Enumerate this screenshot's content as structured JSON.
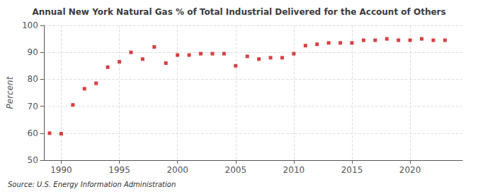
{
  "chart_data": {
    "type": "scatter",
    "title": "Annual New York Natural Gas % of Total Industrial Delivered for the Account of Others",
    "ylabel": "Percent",
    "annotations": [
      "Source: U.S. Energy Information Administration"
    ],
    "x": [
      1989,
      1990,
      1991,
      1992,
      1993,
      1994,
      1995,
      1996,
      1997,
      1998,
      1999,
      2000,
      2001,
      2002,
      2003,
      2004,
      2005,
      2006,
      2007,
      2008,
      2009,
      2010,
      2011,
      2012,
      2013,
      2014,
      2015,
      2016,
      2017,
      2018,
      2019,
      2020,
      2021,
      2022,
      2023
    ],
    "values": [
      60.0,
      59.8,
      70.5,
      76.5,
      78.5,
      84.5,
      86.5,
      90.0,
      87.5,
      92.0,
      86.0,
      89.0,
      89.0,
      89.5,
      89.5,
      89.5,
      85.0,
      88.5,
      87.5,
      88.0,
      88.0,
      89.5,
      92.5,
      93.0,
      93.5,
      93.5,
      93.5,
      94.5,
      94.5,
      95.0,
      94.5,
      94.5,
      95.0,
      94.5,
      94.5
    ],
    "color": "#cc1111",
    "marker": "square",
    "xlim": [
      1988.5,
      2024.5
    ],
    "xticks": [
      1990,
      1995,
      2000,
      2005,
      2010,
      2015,
      2020
    ],
    "ylim": [
      50,
      100
    ],
    "yticks": [
      50,
      60,
      70,
      80,
      90,
      100
    ],
    "grid": true
  }
}
